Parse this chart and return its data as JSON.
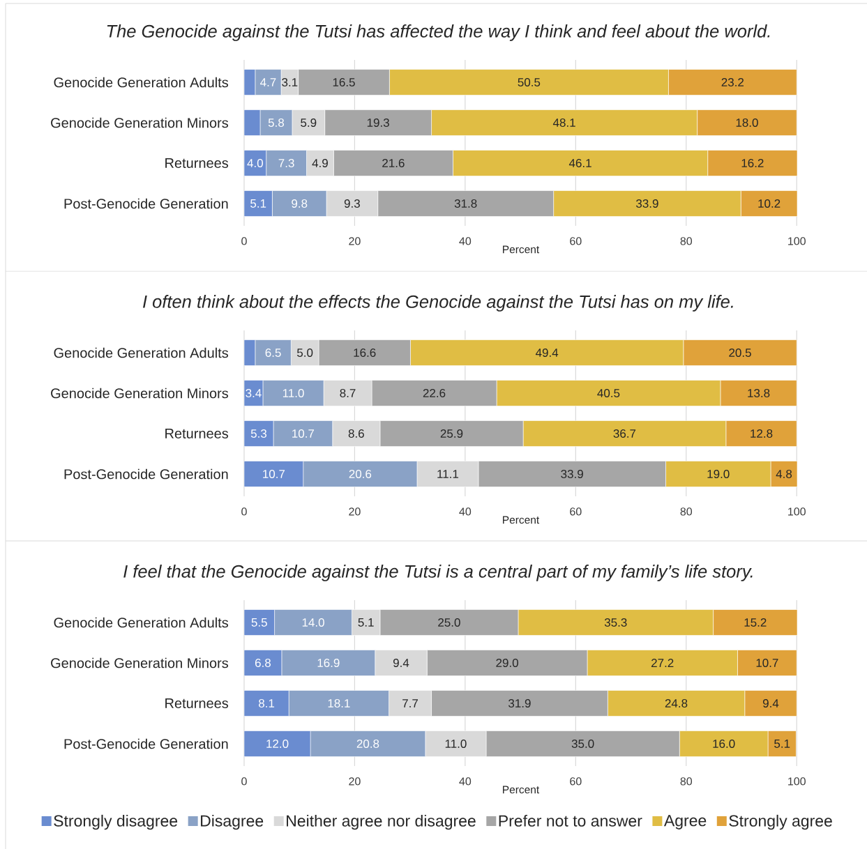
{
  "chart_data": [
    {
      "type": "bar",
      "orientation": "horizontal",
      "stacked": true,
      "title": "The Genocide against the Tutsi has affected the way I think and feel about the world.",
      "xlabel": "Percent",
      "categories": [
        "Genocide Generation Adults",
        "Genocide Generation Minors",
        "Returnees",
        "Post-Genocide Generation"
      ],
      "series": [
        {
          "color": "#6a8cd0",
          "values": [
            2.0,
            2.9,
            4.0,
            5.1
          ],
          "value_labels": [
            null,
            null,
            "4.0",
            "5.1"
          ]
        },
        {
          "color": "#8aa2c6",
          "values": [
            4.7,
            5.8,
            7.3,
            9.8
          ],
          "value_labels": [
            "4.7",
            "5.8",
            "7.3",
            "9.8"
          ]
        },
        {
          "color": "#d9d9d9",
          "values": [
            3.1,
            5.9,
            4.9,
            9.3
          ],
          "value_labels": [
            "3.1",
            "5.9",
            "4.9",
            "9.3"
          ]
        },
        {
          "color": "#a6a6a6",
          "values": [
            16.5,
            19.3,
            21.6,
            31.8
          ],
          "value_labels": [
            "16.5",
            "19.3",
            "21.6",
            "31.8"
          ]
        },
        {
          "color": "#e0bd44",
          "values": [
            50.5,
            48.1,
            46.1,
            33.9
          ],
          "value_labels": [
            "50.5",
            "48.1",
            "46.1",
            "33.9"
          ]
        },
        {
          "color": "#e0a23a",
          "values": [
            23.2,
            18.0,
            16.2,
            10.2
          ],
          "value_labels": [
            "23.2",
            "18.0",
            "16.2",
            "10.2"
          ]
        }
      ],
      "xlim": [
        0,
        100.1
      ],
      "xticks": [
        0,
        20,
        40,
        60,
        80,
        100
      ],
      "grid": "x"
    },
    {
      "type": "bar",
      "orientation": "horizontal",
      "stacked": true,
      "title": "I often think about the effects the Genocide against the Tutsi has on my life.",
      "xlabel": "Percent",
      "categories": [
        "Genocide Generation Adults",
        "Genocide Generation Minors",
        "Returnees",
        "Post-Genocide Generation"
      ],
      "series": [
        {
          "color": "#6a8cd0",
          "values": [
            2.0,
            3.4,
            5.3,
            10.7
          ],
          "value_labels": [
            null,
            "3.4",
            "5.3",
            "10.7"
          ]
        },
        {
          "color": "#8aa2c6",
          "values": [
            6.5,
            11.0,
            10.7,
            20.6
          ],
          "value_labels": [
            "6.5",
            "11.0",
            "10.7",
            "20.6"
          ]
        },
        {
          "color": "#d9d9d9",
          "values": [
            5.0,
            8.7,
            8.6,
            11.1
          ],
          "value_labels": [
            "5.0",
            "8.7",
            "8.6",
            "11.1"
          ]
        },
        {
          "color": "#a6a6a6",
          "values": [
            16.6,
            22.6,
            25.9,
            33.9
          ],
          "value_labels": [
            "16.6",
            "22.6",
            "25.9",
            "33.9"
          ]
        },
        {
          "color": "#e0bd44",
          "values": [
            49.4,
            40.5,
            36.7,
            19.0
          ],
          "value_labels": [
            "49.4",
            "40.5",
            "36.7",
            "19.0"
          ]
        },
        {
          "color": "#e0a23a",
          "values": [
            20.5,
            13.8,
            12.8,
            4.8
          ],
          "value_labels": [
            "20.5",
            "13.8",
            "12.8",
            "4.8"
          ]
        }
      ],
      "xlim": [
        0,
        100.1
      ],
      "xticks": [
        0,
        20,
        40,
        60,
        80,
        100
      ],
      "grid": "x"
    },
    {
      "type": "bar",
      "orientation": "horizontal",
      "stacked": true,
      "title": "I feel that the Genocide against the Tutsi is a central part of my family’s life story.",
      "xlabel": "Percent",
      "categories": [
        "Genocide Generation Adults",
        "Genocide Generation Minors",
        "Returnees",
        "Post-Genocide Generation"
      ],
      "series": [
        {
          "name": "Strongly disagree",
          "color": "#6a8cd0",
          "values": [
            5.5,
            6.8,
            8.1,
            12.0
          ],
          "value_labels": [
            "5.5",
            "6.8",
            "8.1",
            "12.0"
          ]
        },
        {
          "name": "Disagree",
          "color": "#8aa2c6",
          "values": [
            14.0,
            16.9,
            18.1,
            20.8
          ],
          "value_labels": [
            "14.0",
            "16.9",
            "18.1",
            "20.8"
          ]
        },
        {
          "name": "Neither agree nor disagree",
          "color": "#d9d9d9",
          "values": [
            5.1,
            9.4,
            7.7,
            11.0
          ],
          "value_labels": [
            "5.1",
            "9.4",
            "7.7",
            "11.0"
          ]
        },
        {
          "name": "Prefer not to answer",
          "color": "#a6a6a6",
          "values": [
            25.0,
            29.0,
            31.9,
            35.0
          ],
          "value_labels": [
            "25.0",
            "29.0",
            "31.9",
            "35.0"
          ]
        },
        {
          "name": "Agree",
          "color": "#e0bd44",
          "values": [
            35.3,
            27.2,
            24.8,
            16.0
          ],
          "value_labels": [
            "35.3",
            "27.2",
            "24.8",
            "16.0"
          ]
        },
        {
          "name": "Strongly agree",
          "color": "#e0a23a",
          "values": [
            15.2,
            10.7,
            9.4,
            5.1
          ],
          "value_labels": [
            "15.2",
            "10.7",
            "9.4",
            "5.1"
          ]
        }
      ],
      "xlim": [
        0,
        100.1
      ],
      "xticks": [
        0,
        20,
        40,
        60,
        80,
        100
      ],
      "grid": "x",
      "legend": "bottom"
    }
  ]
}
